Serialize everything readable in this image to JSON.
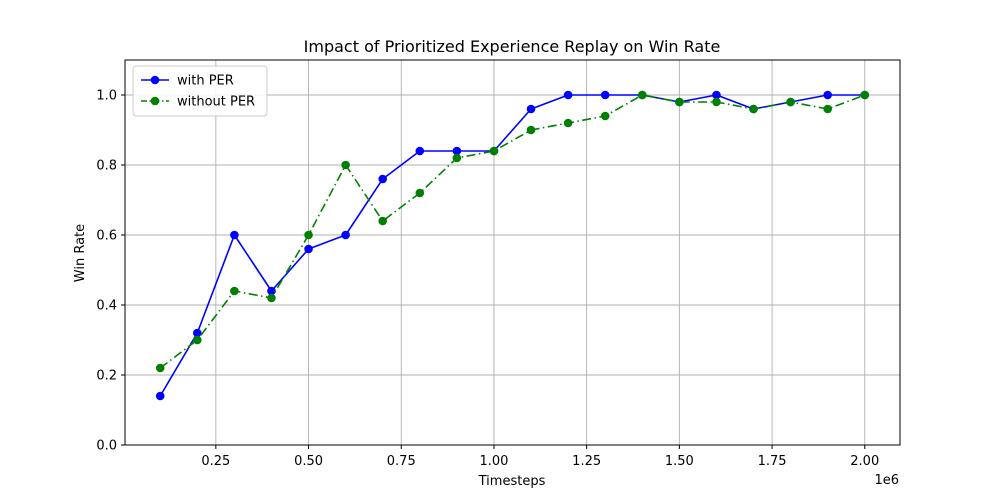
{
  "chart_data": {
    "type": "line",
    "title": "Impact of Prioritized Experience Replay on Win Rate",
    "xlabel": "Timesteps",
    "ylabel": "Win Rate",
    "x_multiplier_label": "1e6",
    "x": [
      100000,
      200000,
      300000,
      400000,
      500000,
      600000,
      700000,
      800000,
      900000,
      1000000,
      1100000,
      1200000,
      1300000,
      1400000,
      1500000,
      1600000,
      1700000,
      1800000,
      1900000,
      2000000
    ],
    "xlim": [
      5000,
      2095000
    ],
    "ylim": [
      0,
      1.1
    ],
    "xticks": [
      250000,
      500000,
      750000,
      1000000,
      1250000,
      1500000,
      1750000,
      2000000
    ],
    "xtick_labels": [
      "0.25",
      "0.50",
      "0.75",
      "1.00",
      "1.25",
      "1.50",
      "1.75",
      "2.00"
    ],
    "yticks": [
      0,
      0.2,
      0.4,
      0.6,
      0.8,
      1.0
    ],
    "ytick_labels": [
      "0.0",
      "0.2",
      "0.4",
      "0.6",
      "0.8",
      "1.0"
    ],
    "grid": true,
    "legend_position": "top-left",
    "series": [
      {
        "name": "with PER",
        "color": "#0000ff",
        "line_style": "solid",
        "marker": "circle",
        "values": [
          0.14,
          0.32,
          0.6,
          0.44,
          0.56,
          0.6,
          0.76,
          0.84,
          0.84,
          0.84,
          0.96,
          1.0,
          1.0,
          1.0,
          0.98,
          1.0,
          0.96,
          0.98,
          1.0,
          1.0
        ]
      },
      {
        "name": "without PER",
        "color": "#008000",
        "line_style": "dashdot",
        "marker": "circle",
        "values": [
          0.22,
          0.3,
          0.44,
          0.42,
          0.6,
          0.8,
          0.64,
          0.72,
          0.82,
          0.84,
          0.9,
          0.92,
          0.94,
          1.0,
          0.98,
          0.98,
          0.96,
          0.98,
          0.96,
          1.0
        ]
      }
    ]
  }
}
